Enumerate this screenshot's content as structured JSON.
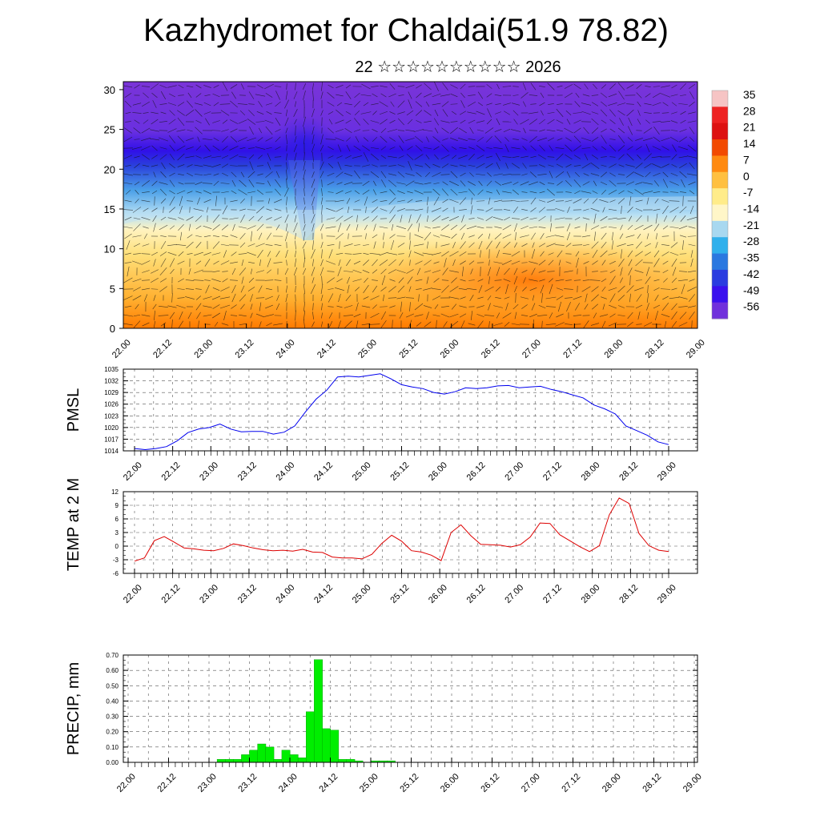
{
  "header": {
    "title": "Kazhydromet for Chaldai(51.9 78.82)",
    "subtitle": "22 ☆☆☆☆☆☆☆☆☆☆ 2026"
  },
  "colors": {
    "pmsl_line": "#0000ee",
    "temp_line": "#dd0000",
    "precip_bar": "#00ee00"
  },
  "chart_data": [
    {
      "type": "heatmap",
      "xlabel": "",
      "ylabel": "",
      "x_ticks": [
        "22.00",
        "22.12",
        "23.00",
        "23.12",
        "24.00",
        "24.12",
        "25.00",
        "25.12",
        "26.00",
        "26.12",
        "27.00",
        "27.12",
        "28.00",
        "28.12",
        "29.00"
      ],
      "y_ticks": [
        0,
        5,
        10,
        15,
        20,
        25,
        30
      ],
      "ylim": [
        0,
        31
      ],
      "colorbar": {
        "labels": [
          "35",
          "28",
          "21",
          "14",
          "7",
          "0",
          "-7",
          "-14",
          "-21",
          "-28",
          "-35",
          "-42",
          "-49",
          "-56"
        ],
        "colors": [
          "#f6c4c4",
          "#ee2222",
          "#dd1111",
          "#f24a00",
          "#ff8a10",
          "#ffc040",
          "#ffec8a",
          "#fff6c8",
          "#a8d8f0",
          "#30b0ec",
          "#2a78e0",
          "#2a3ce0",
          "#3a10ee",
          "#7030dc"
        ]
      },
      "overlay": "wind vectors"
    },
    {
      "type": "line",
      "ylabel": "PMSL",
      "x_ticks": [
        "22.00",
        "22.12",
        "23.00",
        "23.12",
        "24.00",
        "24.12",
        "25.00",
        "25.12",
        "26.00",
        "26.12",
        "27.00",
        "27.12",
        "28.00",
        "28.12",
        "29.00"
      ],
      "y_ticks": [
        1014,
        1017,
        1020,
        1023,
        1026,
        1029,
        1032,
        1035
      ],
      "ylim": [
        1014,
        1035
      ],
      "series": [
        {
          "values": [
            1014.6,
            1014.3,
            1014.6,
            1015.1,
            1016.6,
            1018.7,
            1019.6,
            1020.0,
            1020.9,
            1019.6,
            1018.9,
            1019.0,
            1019.0,
            1018.3,
            1018.8,
            1020.4,
            1024.0,
            1027.3,
            1029.6,
            1033.0,
            1033.2,
            1033.0,
            1033.4,
            1033.8,
            1032.5,
            1031.0,
            1030.4,
            1030.0,
            1029.0,
            1028.6,
            1029.2,
            1030.2,
            1030.0,
            1030.2,
            1030.7,
            1030.8,
            1030.2,
            1030.4,
            1030.6,
            1029.8,
            1029.2,
            1028.4,
            1027.6,
            1025.8,
            1024.8,
            1023.5,
            1020.4,
            1019.2,
            1018.0,
            1016.3,
            1015.6
          ]
        }
      ]
    },
    {
      "type": "line",
      "ylabel": "TEMP at 2 M",
      "x_ticks": [
        "22.00",
        "22.12",
        "23.00",
        "23.12",
        "24.00",
        "24.12",
        "25.00",
        "25.12",
        "26.00",
        "26.12",
        "27.00",
        "27.12",
        "28.00",
        "28.12",
        "29.00"
      ],
      "y_ticks": [
        -6,
        -3,
        0,
        3,
        6,
        9,
        12
      ],
      "ylim": [
        -6,
        12
      ],
      "series": [
        {
          "values": [
            -3.3,
            -2.6,
            1.2,
            2.1,
            0.9,
            -0.4,
            -0.6,
            -0.9,
            -1.0,
            -0.5,
            0.5,
            0.1,
            -0.4,
            -0.8,
            -1.0,
            -0.9,
            -1.1,
            -0.7,
            -1.3,
            -1.4,
            -2.4,
            -2.6,
            -2.6,
            -2.8,
            -1.8,
            0.6,
            2.4,
            1.1,
            -1.0,
            -1.3,
            -2.0,
            -3.2,
            3.0,
            4.7,
            2.3,
            0.4,
            0.3,
            0.2,
            -0.2,
            0.3,
            2.0,
            5.1,
            5.0,
            2.5,
            1.2,
            -0.1,
            -1.2,
            0.1,
            6.9,
            10.6,
            9.4,
            2.8,
            0.1,
            -0.9,
            -1.2
          ]
        }
      ]
    },
    {
      "type": "bar",
      "ylabel": "PRECIP, mm",
      "x_ticks": [
        "22.00",
        "22.12",
        "23.00",
        "23.12",
        "24.00",
        "24.12",
        "25.00",
        "25.12",
        "26.00",
        "26.12",
        "27.00",
        "27.12",
        "28.00",
        "28.12",
        "29.00"
      ],
      "y_ticks": [
        "0.00",
        "0.10",
        "0.20",
        "0.30",
        "0.40",
        "0.50",
        "0.60",
        "0.70"
      ],
      "ylim": [
        0,
        0.7
      ],
      "series": [
        {
          "values": [
            0,
            0,
            0,
            0,
            0,
            0,
            0,
            0,
            0,
            0,
            0,
            0.02,
            0.02,
            0.02,
            0.05,
            0.08,
            0.12,
            0.1,
            0.02,
            0.08,
            0.05,
            0.03,
            0.33,
            0.67,
            0.22,
            0.21,
            0.02,
            0.02,
            0.01,
            0,
            0.01,
            0.01,
            0.01,
            0,
            0,
            0,
            0,
            0,
            0,
            0,
            0,
            0,
            0,
            0,
            0,
            0,
            0,
            0,
            0,
            0,
            0,
            0,
            0,
            0,
            0,
            0,
            0,
            0,
            0,
            0,
            0,
            0,
            0,
            0,
            0,
            0,
            0,
            0,
            0,
            0,
            0
          ]
        }
      ]
    }
  ]
}
